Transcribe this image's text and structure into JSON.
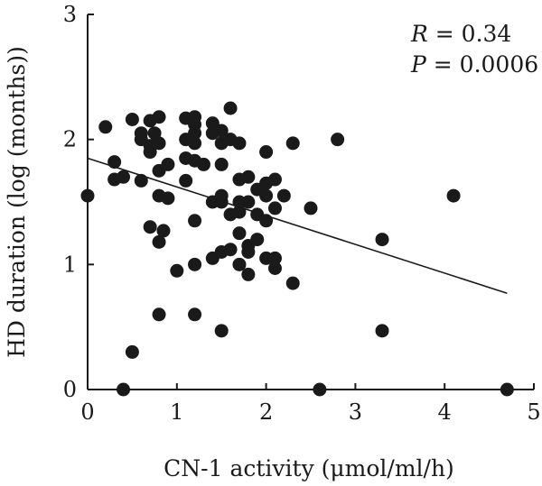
{
  "chart_data": {
    "type": "scatter",
    "title": "",
    "xlabel": "CN-1 activity (μmol/ml/h)",
    "ylabel": "HD duration (log (months))",
    "xlim": [
      0,
      5
    ],
    "ylim": [
      0,
      3
    ],
    "x_ticks": [
      "0",
      "1",
      "2",
      "3",
      "4",
      "5"
    ],
    "y_ticks": [
      "0",
      "1",
      "2",
      "3"
    ],
    "grid": false,
    "annotations": {
      "r_symbol": "R",
      "r_value": " = 0.34",
      "p_symbol": "P",
      "p_value": " = 0.0006"
    },
    "trendline": {
      "x": [
        0,
        4.7
      ],
      "y": [
        1.85,
        0.77
      ]
    },
    "point_color": "#1a1a1a",
    "points": [
      [
        0.0,
        1.55
      ],
      [
        0.2,
        2.1
      ],
      [
        0.3,
        1.82
      ],
      [
        0.3,
        1.68
      ],
      [
        0.4,
        1.7
      ],
      [
        0.4,
        0.0
      ],
      [
        0.5,
        2.16
      ],
      [
        0.5,
        0.3
      ],
      [
        0.6,
        2.05
      ],
      [
        0.6,
        2.0
      ],
      [
        0.6,
        1.67
      ],
      [
        0.7,
        2.15
      ],
      [
        0.7,
        1.9
      ],
      [
        0.7,
        1.95
      ],
      [
        0.7,
        1.3
      ],
      [
        0.75,
        2.05
      ],
      [
        0.8,
        2.18
      ],
      [
        0.8,
        1.97
      ],
      [
        0.8,
        1.75
      ],
      [
        0.8,
        1.55
      ],
      [
        0.8,
        1.18
      ],
      [
        0.8,
        0.6
      ],
      [
        0.85,
        1.27
      ],
      [
        0.9,
        1.8
      ],
      [
        0.9,
        1.53
      ],
      [
        1.0,
        0.95
      ],
      [
        1.1,
        2.17
      ],
      [
        1.1,
        2.0
      ],
      [
        1.1,
        1.85
      ],
      [
        1.1,
        1.67
      ],
      [
        1.2,
        2.18
      ],
      [
        1.2,
        2.12
      ],
      [
        1.2,
        2.05
      ],
      [
        1.2,
        1.97
      ],
      [
        1.2,
        1.83
      ],
      [
        1.2,
        1.35
      ],
      [
        1.2,
        1.0
      ],
      [
        1.2,
        0.6
      ],
      [
        1.3,
        1.8
      ],
      [
        1.4,
        2.13
      ],
      [
        1.4,
        2.05
      ],
      [
        1.4,
        1.5
      ],
      [
        1.4,
        1.05
      ],
      [
        1.5,
        2.07
      ],
      [
        1.5,
        1.97
      ],
      [
        1.5,
        1.8
      ],
      [
        1.5,
        1.55
      ],
      [
        1.5,
        1.5
      ],
      [
        1.5,
        1.1
      ],
      [
        1.5,
        0.47
      ],
      [
        1.6,
        2.25
      ],
      [
        1.6,
        2.0
      ],
      [
        1.6,
        1.4
      ],
      [
        1.6,
        1.12
      ],
      [
        1.7,
        1.97
      ],
      [
        1.7,
        1.68
      ],
      [
        1.7,
        1.5
      ],
      [
        1.7,
        1.42
      ],
      [
        1.7,
        1.25
      ],
      [
        1.7,
        1.0
      ],
      [
        1.8,
        1.7
      ],
      [
        1.8,
        1.5
      ],
      [
        1.8,
        1.15
      ],
      [
        1.8,
        1.1
      ],
      [
        1.8,
        0.92
      ],
      [
        1.9,
        1.6
      ],
      [
        1.9,
        1.4
      ],
      [
        1.9,
        1.2
      ],
      [
        2.0,
        1.9
      ],
      [
        2.0,
        1.65
      ],
      [
        2.0,
        1.55
      ],
      [
        2.0,
        1.35
      ],
      [
        2.0,
        1.05
      ],
      [
        2.1,
        1.68
      ],
      [
        2.1,
        1.45
      ],
      [
        2.1,
        1.05
      ],
      [
        2.1,
        0.97
      ],
      [
        2.2,
        1.55
      ],
      [
        2.3,
        1.97
      ],
      [
        2.3,
        0.85
      ],
      [
        2.5,
        1.45
      ],
      [
        2.6,
        0.0
      ],
      [
        2.8,
        2.0
      ],
      [
        3.3,
        1.2
      ],
      [
        3.3,
        0.47
      ],
      [
        4.1,
        1.55
      ],
      [
        4.7,
        0.0
      ]
    ]
  }
}
